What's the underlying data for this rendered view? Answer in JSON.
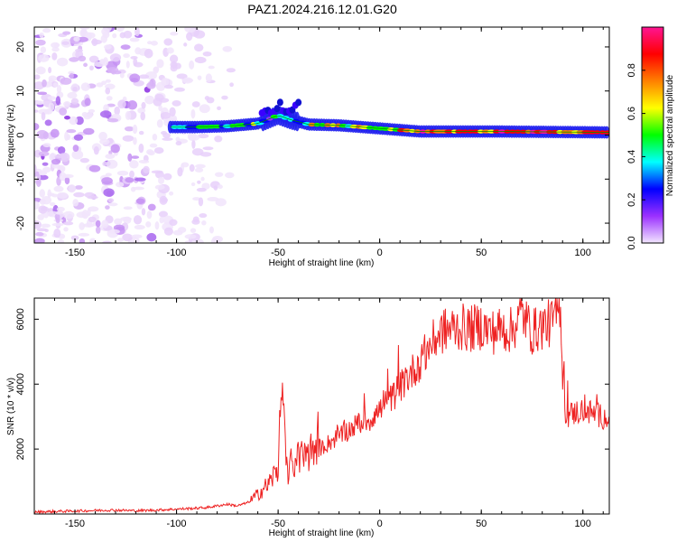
{
  "page": {
    "title": "PAZ1.2024.216.12.01.G20"
  },
  "chart_data": [
    {
      "type": "heatmap",
      "xlabel": "Height of straight line (km)",
      "ylabel": "Frequency (Hz)",
      "xlim": [
        -170,
        113
      ],
      "ylim": [
        -24.5,
        24.5
      ],
      "xticks": [
        -150,
        -100,
        -50,
        0,
        50,
        100
      ],
      "yticks": [
        -20,
        -10,
        0,
        10,
        20
      ],
      "colorbar": {
        "label": "Normalized spectral amplitude",
        "range": [
          0,
          1
        ],
        "ticks": [
          0.0,
          0.2,
          0.4,
          0.6,
          0.8
        ],
        "colormap": [
          "#f2e6ff",
          "#9b30ff",
          "#0000ff",
          "#00ffff",
          "#00ff00",
          "#ffff00",
          "#ff8000",
          "#ff0000",
          "#ff1493"
        ]
      },
      "features": {
        "noise_region_x": [
          -170,
          -72
        ],
        "line_start_x": -103,
        "line_frequency_profile": [
          [
            -103,
            1.8
          ],
          [
            -90,
            1.8
          ],
          [
            -75,
            2.0
          ],
          [
            -60,
            2.6
          ],
          [
            -50,
            4.5
          ],
          [
            -44,
            3.5
          ],
          [
            -35,
            2.4
          ],
          [
            -20,
            2.2
          ],
          [
            0,
            1.5
          ],
          [
            20,
            0.8
          ],
          [
            60,
            0.8
          ],
          [
            113,
            0.6
          ]
        ]
      }
    },
    {
      "type": "line",
      "xlabel": "Height of straight line (km)",
      "ylabel": "SNR (10 * v/v)",
      "xlim": [
        -170,
        113
      ],
      "ylim": [
        0,
        6650
      ],
      "xticks": [
        -150,
        -100,
        -50,
        0,
        50,
        100
      ],
      "yticks": [
        2000,
        4000,
        6000
      ],
      "color": "#ee2222",
      "x": [
        -170,
        -160,
        -150,
        -140,
        -130,
        -120,
        -110,
        -100,
        -90,
        -85,
        -80,
        -75,
        -70,
        -65,
        -60,
        -57,
        -55,
        -52,
        -50,
        -48,
        -46,
        -45,
        -43,
        -40,
        -37,
        -35,
        -30,
        -25,
        -20,
        -15,
        -10,
        -5,
        0,
        5,
        10,
        15,
        20,
        25,
        30,
        35,
        40,
        45,
        50,
        55,
        60,
        65,
        70,
        75,
        80,
        85,
        88,
        89,
        90,
        91,
        92,
        95,
        100,
        105,
        110,
        113
      ],
      "y": [
        60,
        80,
        90,
        110,
        120,
        100,
        120,
        150,
        180,
        200,
        250,
        300,
        250,
        350,
        600,
        800,
        900,
        1200,
        1400,
        4300,
        1500,
        1300,
        1600,
        1700,
        1800,
        1900,
        2000,
        2200,
        2400,
        2600,
        2800,
        2900,
        3200,
        3500,
        3900,
        4300,
        4700,
        5200,
        5600,
        5700,
        5750,
        5700,
        5800,
        5600,
        5700,
        5650,
        6200,
        5600,
        5800,
        5900,
        6300,
        6650,
        4200,
        3200,
        3000,
        3100,
        3200,
        3100,
        3000,
        2900
      ]
    }
  ]
}
